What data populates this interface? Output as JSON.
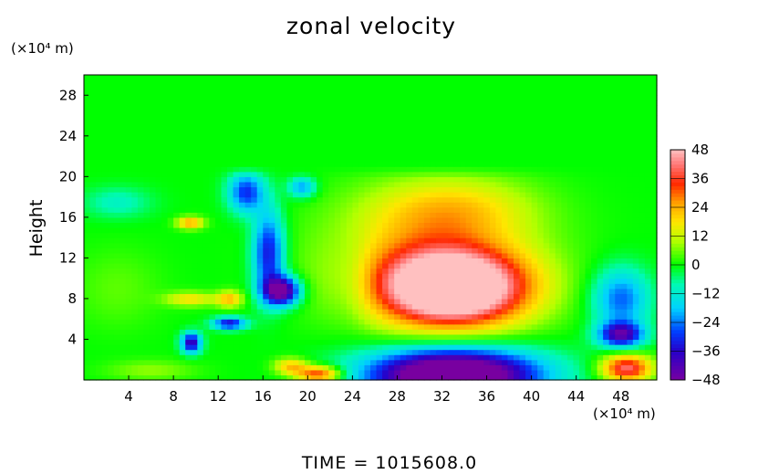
{
  "chart_data": {
    "type": "heatmap",
    "title": "zonal velocity",
    "ylabel": "Height",
    "x_unit": "(×10⁴ m)",
    "y_unit": "(×10⁴ m)",
    "x_ticks": [
      4,
      8,
      12,
      16,
      20,
      24,
      28,
      32,
      36,
      40,
      44,
      48
    ],
    "y_ticks": [
      4,
      8,
      12,
      16,
      20,
      24,
      28
    ],
    "xlim": [
      0,
      51.2
    ],
    "ylim": [
      0,
      30
    ],
    "colorbar": {
      "ticks": [
        48,
        36,
        24,
        12,
        0,
        -12,
        -24,
        -36,
        -48
      ],
      "range": [
        -48,
        48
      ]
    },
    "footer": "TIME = 1015608.0",
    "features": [
      {
        "x": 33,
        "y": 9,
        "sx": 6.5,
        "sy": 3.6,
        "amp": 62
      },
      {
        "x": 31,
        "y": 12,
        "sx": 9,
        "sy": 6,
        "amp": 22
      },
      {
        "x": 33,
        "y": 17,
        "sx": 7,
        "sy": 3,
        "amp": 14
      },
      {
        "x": 33,
        "y": 0.5,
        "sx": 7.5,
        "sy": 2.6,
        "amp": -70
      },
      {
        "x": 17.7,
        "y": 8.8,
        "sx": 1.6,
        "sy": 1.4,
        "amp": -50
      },
      {
        "x": 16.5,
        "y": 12.5,
        "sx": 1.4,
        "sy": 4.2,
        "amp": -34
      },
      {
        "x": 14.5,
        "y": 18.5,
        "sx": 1.6,
        "sy": 2,
        "amp": -30
      },
      {
        "x": 19.5,
        "y": 19,
        "sx": 1.2,
        "sy": 1,
        "amp": -22
      },
      {
        "x": 9.6,
        "y": 3.7,
        "sx": 0.9,
        "sy": 1,
        "amp": -40
      },
      {
        "x": 13,
        "y": 5.6,
        "sx": 1.5,
        "sy": 0.6,
        "amp": -35
      },
      {
        "x": 48,
        "y": 4.5,
        "sx": 2,
        "sy": 1.2,
        "amp": -40
      },
      {
        "x": 48,
        "y": 8,
        "sx": 2.5,
        "sy": 3,
        "amp": -26
      },
      {
        "x": 3,
        "y": 17.5,
        "sx": 3,
        "sy": 1.5,
        "amp": -10
      },
      {
        "x": 9.5,
        "y": 15.5,
        "sx": 1.2,
        "sy": 0.6,
        "amp": 26
      },
      {
        "x": 9.5,
        "y": 8,
        "sx": 2.2,
        "sy": 0.7,
        "amp": 18
      },
      {
        "x": 13,
        "y": 8,
        "sx": 1.2,
        "sy": 0.8,
        "amp": 22
      },
      {
        "x": 21,
        "y": 0.6,
        "sx": 2,
        "sy": 0.8,
        "amp": 36
      },
      {
        "x": 18.5,
        "y": 1.4,
        "sx": 1.5,
        "sy": 0.8,
        "amp": 22
      },
      {
        "x": 48.5,
        "y": 1.2,
        "sx": 2.2,
        "sy": 1.3,
        "amp": 42
      },
      {
        "x": 3,
        "y": 9,
        "sx": 4,
        "sy": 4,
        "amp": 5
      },
      {
        "x": 24,
        "y": 10,
        "sx": 2,
        "sy": 4,
        "amp": -6
      },
      {
        "x": 6,
        "y": 1,
        "sx": 4,
        "sy": 1,
        "amp": 8
      }
    ]
  }
}
